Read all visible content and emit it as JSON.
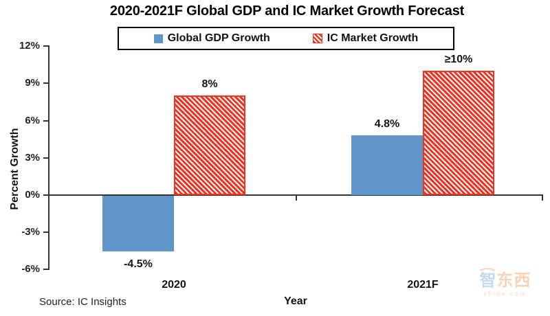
{
  "title": "2020-2021F Global GDP and IC Market Growth Forecast",
  "legend": {
    "items": [
      {
        "label": "Global GDP Growth",
        "swatch": "solid-square",
        "color": "#6095c9"
      },
      {
        "label": "IC Market Growth",
        "swatch": "diagonal-hatch-square",
        "color": "#ee3420"
      }
    ]
  },
  "chart_data": {
    "type": "bar",
    "categories": [
      "2020",
      "2021F"
    ],
    "series": [
      {
        "name": "Global GDP Growth",
        "values": [
          -4.5,
          4.8
        ],
        "labels": [
          "-4.5%",
          "4.8%"
        ],
        "color": "#6095c9",
        "pattern": "solid"
      },
      {
        "name": "IC Market Growth",
        "values": [
          8,
          10
        ],
        "labels": [
          "8%",
          "≥10%"
        ],
        "color": "#ee3420",
        "pattern": "diagonal-hatch"
      }
    ],
    "title": "2020-2021F Global GDP and IC Market Growth Forecast",
    "xlabel": "Year",
    "ylabel": "Percent Growth",
    "ylim": [
      -6,
      12
    ],
    "ytick_step": 3,
    "ytick_labels": [
      "12%",
      "9%",
      "6%",
      "3%",
      "0%",
      "-3%",
      "-6%"
    ],
    "grid": false,
    "legend_position": "top-center"
  },
  "source_note": "Source: IC Insights",
  "watermark": {
    "chars": [
      "智",
      "东",
      "西"
    ],
    "subtext": "zhidx.com"
  }
}
